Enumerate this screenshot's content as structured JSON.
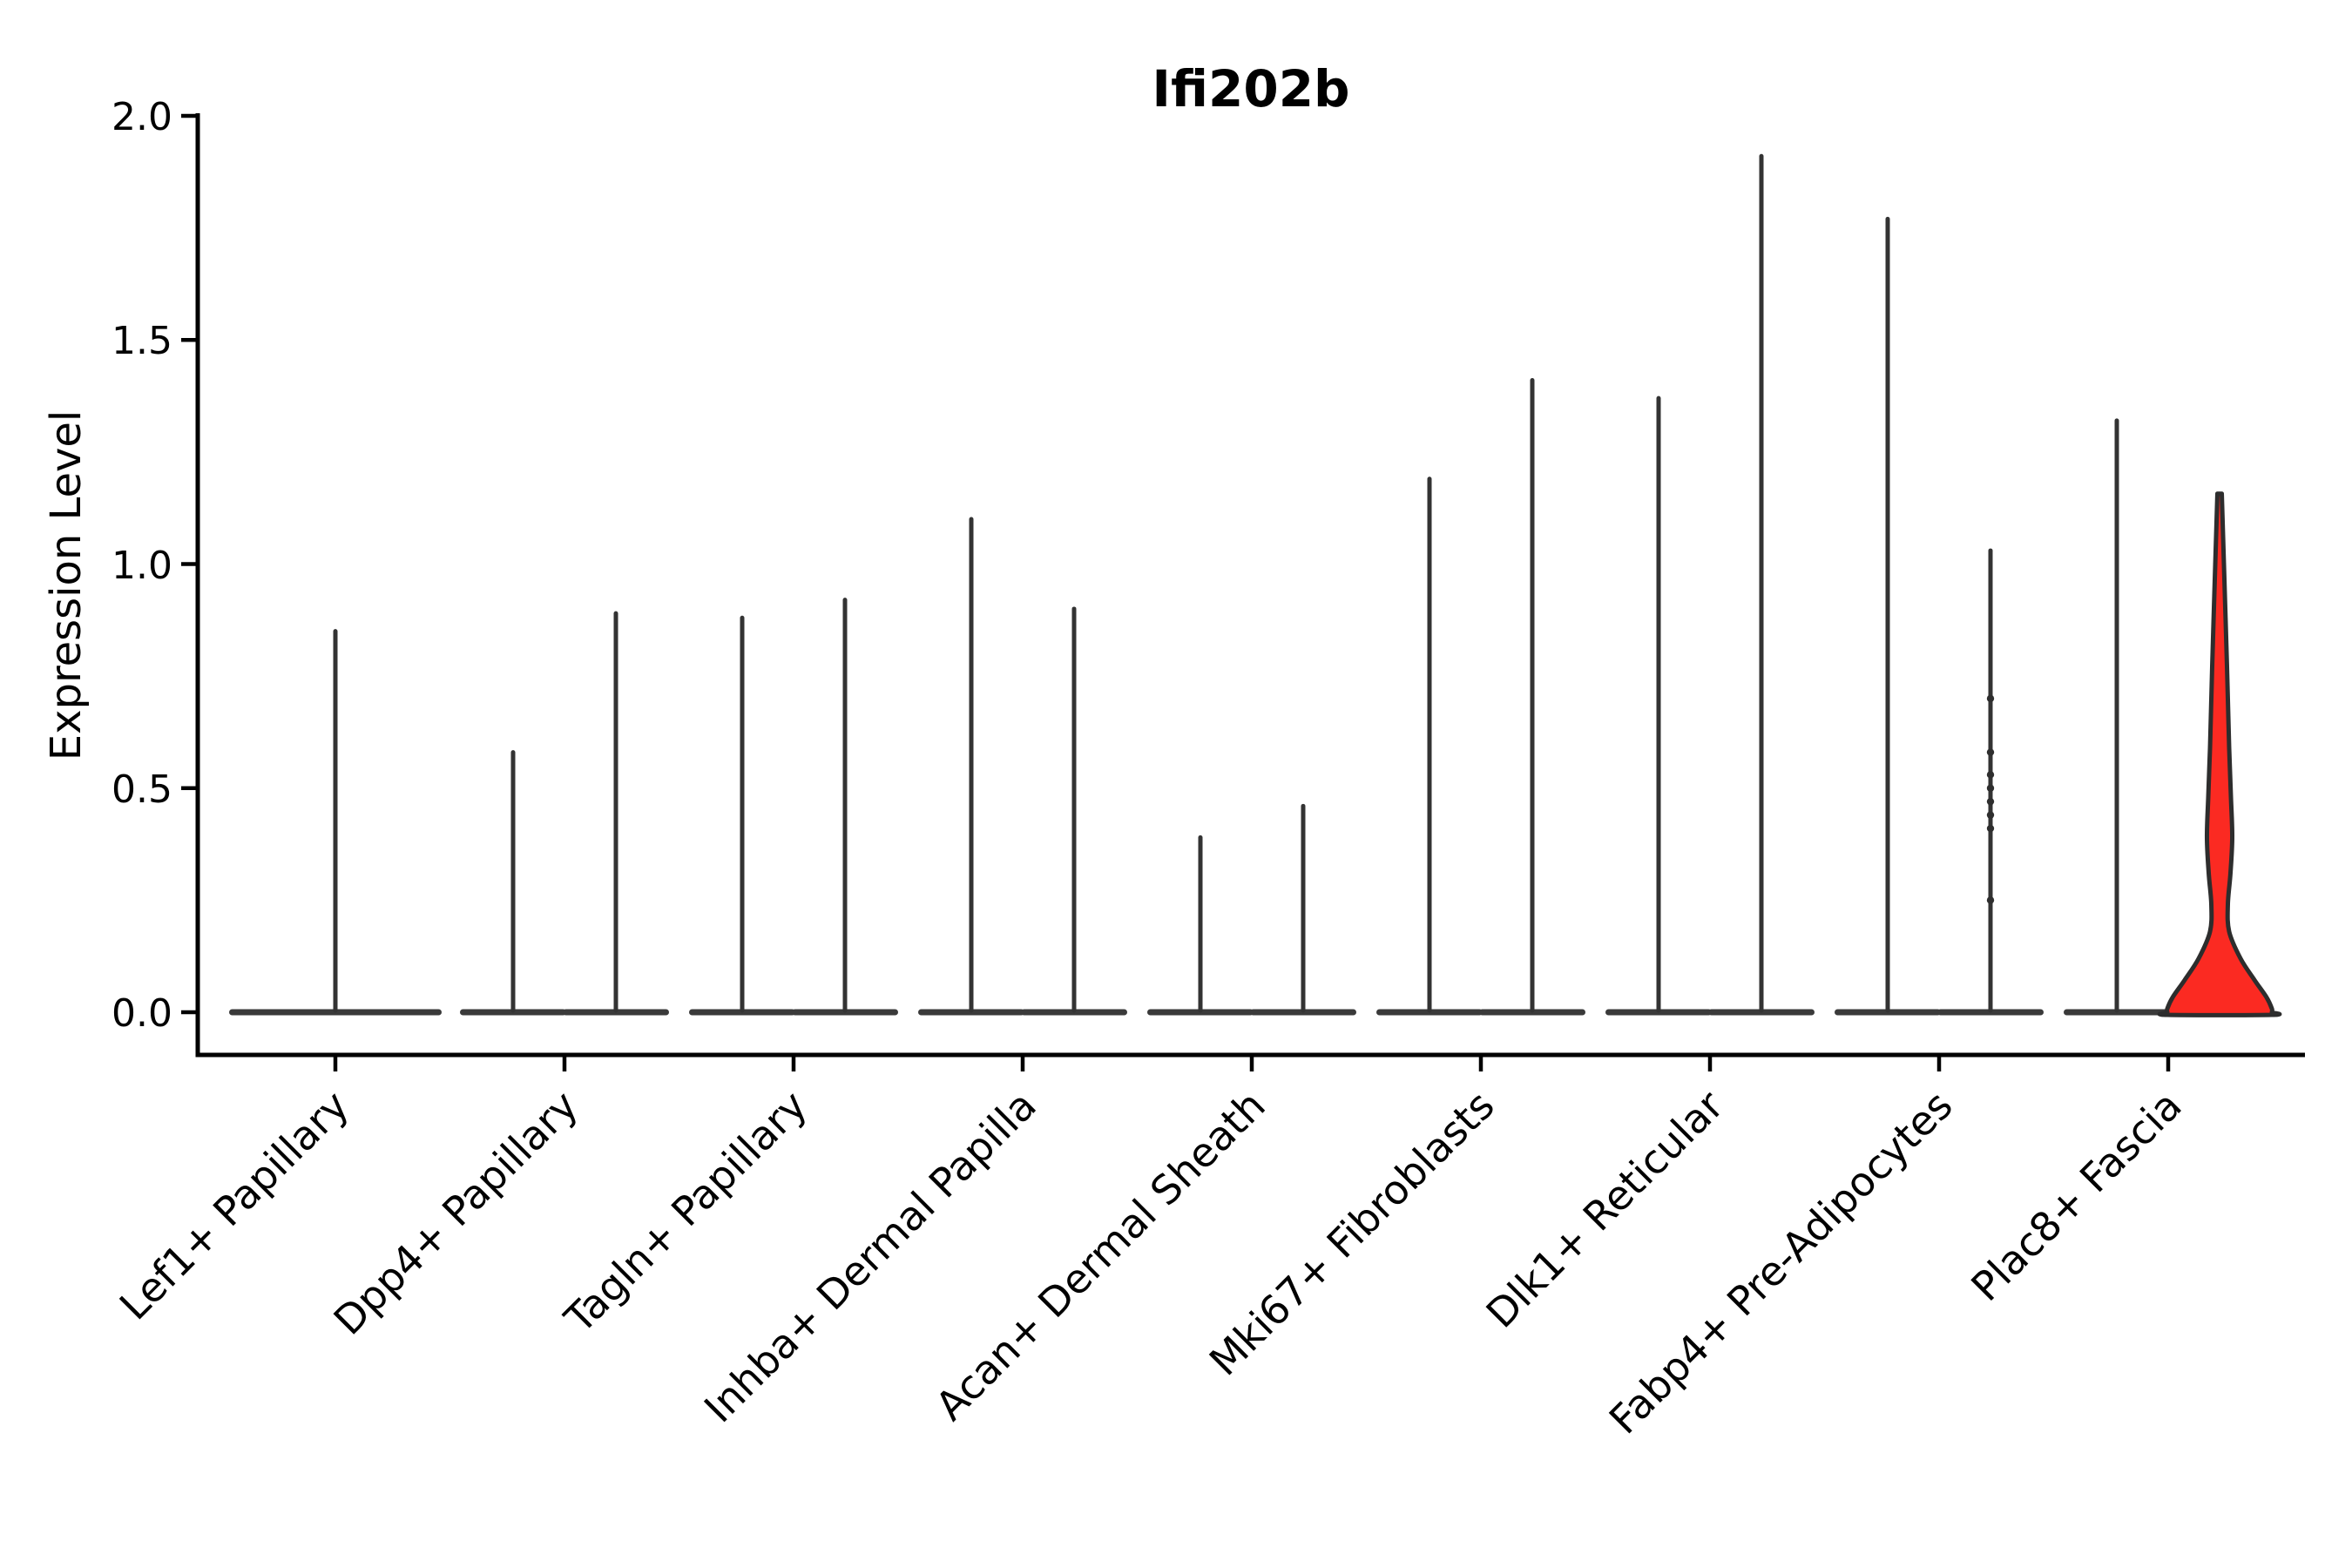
{
  "figure": {
    "title": "Ifi202b",
    "ylabel": "Expression Level",
    "background_color": "#ffffff",
    "axis_color": "#000000",
    "violin_line_color": "#333333",
    "violin_base_color": "#3a3a3a",
    "highlight_fill_color": "#fb2a22",
    "highlight_outline_color": "#2d2d2d"
  },
  "chart_data": {
    "type": "violin",
    "title": "Ifi202b",
    "xlabel": "",
    "ylabel": "Expression Level",
    "ylim": [
      -0.095,
      2.0
    ],
    "grid": false,
    "legend": false,
    "yticks": [
      "0.0",
      "0.5",
      "1.0",
      "1.5",
      "2.0"
    ],
    "ytick_values": [
      0.0,
      0.5,
      1.0,
      1.5,
      2.0
    ],
    "categories": [
      "Lef1+ Papillary",
      "Dpp4+ Papillary",
      "Tagln+ Papillary",
      "Inhba+ Dermal Papilla",
      "Acan+ Dermal Sheath",
      "Mki67+ Fibroblasts",
      "Dlk1+ Reticular",
      "Fabp4+ Pre-Adipocytes",
      "Plac8+ Fascia"
    ],
    "description": "Most violins collapse to a flat base at 0 with a thin needle up to the max expression value; the right-hand violin of Plac8+ Fascia is filled red with visible density (bulge near 0.4, waist near 0.24, wide base at 0).",
    "violins": [
      {
        "category_index": 0,
        "position": "center",
        "style": "needle",
        "max_expression": 0.85
      },
      {
        "category_index": 1,
        "position": "left",
        "style": "needle",
        "max_expression": 0.58
      },
      {
        "category_index": 1,
        "position": "right",
        "style": "needle",
        "max_expression": 0.89
      },
      {
        "category_index": 2,
        "position": "left",
        "style": "needle",
        "max_expression": 0.88
      },
      {
        "category_index": 2,
        "position": "right",
        "style": "needle",
        "max_expression": 0.92
      },
      {
        "category_index": 3,
        "position": "left",
        "style": "needle",
        "max_expression": 1.1
      },
      {
        "category_index": 3,
        "position": "right",
        "style": "needle",
        "max_expression": 0.9
      },
      {
        "category_index": 4,
        "position": "left",
        "style": "needle",
        "max_expression": 0.39
      },
      {
        "category_index": 4,
        "position": "right",
        "style": "needle",
        "max_expression": 0.46
      },
      {
        "category_index": 5,
        "position": "left",
        "style": "needle",
        "max_expression": 1.19
      },
      {
        "category_index": 5,
        "position": "right",
        "style": "needle",
        "max_expression": 1.41
      },
      {
        "category_index": 6,
        "position": "left",
        "style": "needle",
        "max_expression": 1.37
      },
      {
        "category_index": 6,
        "position": "right",
        "style": "needle",
        "max_expression": 1.91
      },
      {
        "category_index": 7,
        "position": "left",
        "style": "needle",
        "max_expression": 1.77
      },
      {
        "category_index": 7,
        "position": "right",
        "style": "needle",
        "max_expression": 1.03,
        "jitter_values": [
          0.7,
          0.58,
          0.53,
          0.5,
          0.47,
          0.44,
          0.41,
          0.25
        ]
      },
      {
        "category_index": 8,
        "position": "left",
        "style": "needle",
        "max_expression": 1.32
      },
      {
        "category_index": 8,
        "position": "right",
        "style": "filled",
        "max_expression": 1.16,
        "fill": "#fb2a22",
        "density_profile": [
          [
            1.157,
            0.042
          ],
          [
            1.0,
            0.083
          ],
          [
            0.77,
            0.142
          ],
          [
            0.59,
            0.183
          ],
          [
            0.48,
            0.217
          ],
          [
            0.39,
            0.242
          ],
          [
            0.31,
            0.208
          ],
          [
            0.24,
            0.158
          ],
          [
            0.18,
            0.183
          ],
          [
            0.12,
            0.4
          ],
          [
            0.072,
            0.667
          ],
          [
            0.033,
            0.9
          ],
          [
            0.008,
            1.0
          ],
          [
            0.0,
            1.0
          ]
        ]
      }
    ]
  }
}
